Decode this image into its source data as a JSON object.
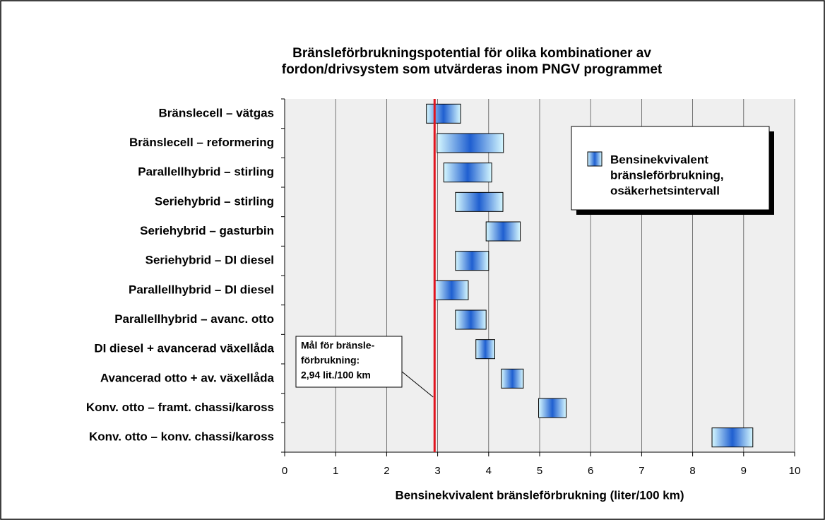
{
  "chart_data": {
    "type": "floating_bar",
    "title": [
      "Bränsleförbrukningspotential för olika kombinationer av",
      "fordon/drivsystem som utvärderas inom PNGV programmet"
    ],
    "xlabel": "Bensinekvivalent bränsleförbrukning (liter/100 km)",
    "categories": [
      "Bränslecell – vätgas",
      "Bränslecell – reformering",
      "Parallellhybrid – stirling",
      "Seriehybrid – stirling",
      "Seriehybrid – gasturbin",
      "Seriehybrid – DI diesel",
      "Parallellhybrid – DI diesel",
      "Parallellhybrid – avanc. otto",
      "DI diesel + avancerad växellåda",
      "Avancerad otto + av. växellåda",
      "Konv. otto – framt. chassi/kaross",
      "Konv. otto – konv. chassi/kaross"
    ],
    "low": [
      2.78,
      2.99,
      3.12,
      3.35,
      3.95,
      3.35,
      2.95,
      3.35,
      3.75,
      4.25,
      4.98,
      8.38
    ],
    "high": [
      3.45,
      4.29,
      4.06,
      4.28,
      4.62,
      4.0,
      3.6,
      3.95,
      4.12,
      4.68,
      5.52,
      9.18
    ],
    "color": "#1f5fd0",
    "legend": [
      "Bensinekvivalent",
      "bränsleförbrukning,",
      "osäkerhetsintervall"
    ],
    "target": 2.94,
    "target_color": "#e0141e",
    "annotation": [
      "Mål för bränsle-",
      "förbrukning:",
      "2,94 lit./100 km"
    ],
    "xlim": [
      0,
      10
    ],
    "xticks": [
      0,
      1,
      2,
      3,
      4,
      5,
      6,
      7,
      8,
      9,
      10
    ],
    "grid": true
  }
}
